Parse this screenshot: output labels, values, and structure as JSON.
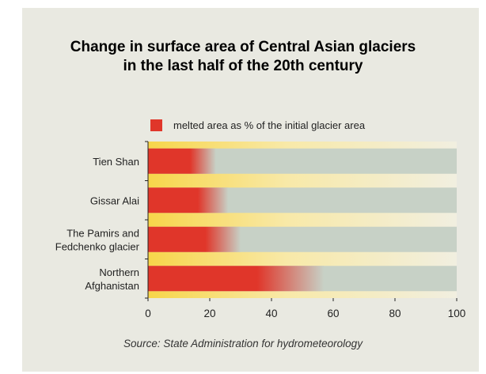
{
  "chart_data": {
    "type": "bar",
    "orientation": "horizontal",
    "title": [
      "Change in surface area of Central Asian glaciers",
      "in the last half of the 20th century"
    ],
    "legend": "melted area as % of the initial glacier area",
    "categories": [
      "Tien Shan",
      "Gissar Alai",
      "The Pamirs and\nFedchenko glacier",
      "Northern\nAfghanistan"
    ],
    "series": [
      {
        "name": "melted area as % of the initial glacier area",
        "values": [
          22,
          26,
          30,
          57
        ]
      }
    ],
    "xlim": [
      0,
      100
    ],
    "xticks": [
      0,
      20,
      40,
      60,
      80,
      100
    ],
    "legend_position": "top",
    "source": "Source: State Administration for hydrometeorology",
    "colors": {
      "melted": "#e0362a",
      "remaining": "#c7d1c6",
      "band": "#f6d850",
      "background": "#e9e9e1"
    }
  }
}
